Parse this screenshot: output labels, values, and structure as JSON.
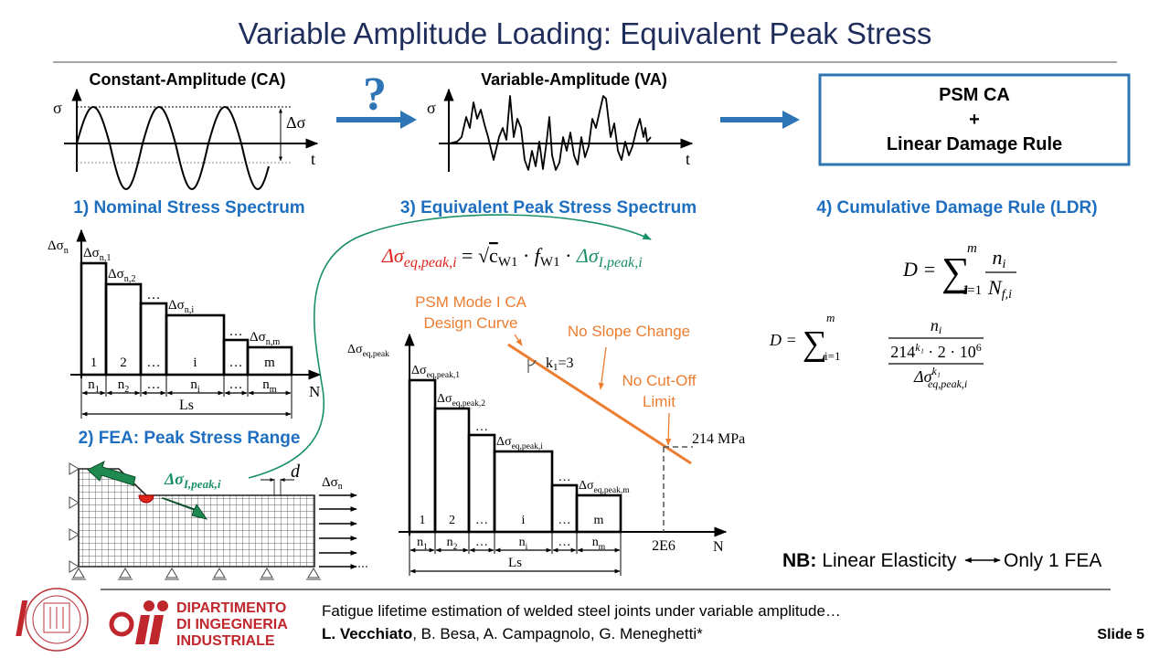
{
  "title": "Variable Amplitude Loading: Equivalent Peak Stress",
  "colors": {
    "title": "#1f2d5c",
    "accent": "#1f6fc0",
    "arrow": "#2e75b6",
    "orange": "#ed7d31",
    "red": "#e0231b",
    "green": "#1a9068",
    "logo_red": "#c0272d"
  },
  "top": {
    "ca_title": "Constant-Amplitude (CA)",
    "va_title": "Variable-Amplitude (VA)",
    "sigma": "σ",
    "time": "t",
    "delta_sigma": "Δσ",
    "question": "?",
    "result_box": {
      "line1": "PSM CA",
      "line2": "+",
      "line3": "Linear Damage Rule"
    }
  },
  "sections": {
    "s1": "1) Nominal Stress Spectrum",
    "s2": "2) FEA: Peak Stress Range",
    "s3": "3) Equivalent Peak Stress Spectrum",
    "s4": "4) Cumulative Damage Rule (LDR)"
  },
  "nominal_spectrum": {
    "axis_y": {
      "main": "Δσ",
      "sub": "n"
    },
    "axis_x": "N",
    "total": "Ls",
    "blocks": [
      {
        "level": {
          "main": "Δσ",
          "sub": "n,1"
        },
        "index": "1",
        "count": {
          "main": "n",
          "sub": "1"
        }
      },
      {
        "level": {
          "main": "Δσ",
          "sub": "n,2"
        },
        "index": "2",
        "count": {
          "main": "n",
          "sub": "2"
        }
      },
      {
        "level": {
          "main": "…",
          "sub": ""
        },
        "index": "…",
        "count": {
          "main": "…",
          "sub": ""
        }
      },
      {
        "level": {
          "main": "Δσ",
          "sub": "n,i"
        },
        "index": "i",
        "count": {
          "main": "n",
          "sub": "i"
        }
      },
      {
        "level": {
          "main": "…",
          "sub": ""
        },
        "index": "…",
        "count": {
          "main": "…",
          "sub": ""
        }
      },
      {
        "level": {
          "main": "Δσ",
          "sub": "n,m"
        },
        "index": "m",
        "count": {
          "main": "n",
          "sub": "m"
        }
      }
    ]
  },
  "fea": {
    "peak_label": {
      "main": "Δσ",
      "sub": "I,peak,i"
    },
    "d_label": "d",
    "load_label": {
      "main": "Δσ",
      "sub": "n"
    }
  },
  "equation_peak": {
    "lhs": {
      "main": "Δσ",
      "sub": "eq,peak,i"
    },
    "eq": " = ",
    "sqrt": "√",
    "cw": {
      "main": "c",
      "sub": "W1"
    },
    "dot": " · ",
    "fw": {
      "main": "f",
      "sub": "W1"
    },
    "rhs": {
      "main": "Δσ",
      "sub": "I,peak,i"
    }
  },
  "peak_spectrum": {
    "axis_y": {
      "main": "Δσ",
      "sub": "eq,peak"
    },
    "axis_x": "N",
    "total": "Ls",
    "n_ref": "2E6",
    "stress_ref": "214 MPa",
    "slope": {
      "main": "k",
      "sub": "1",
      "tail": "=3"
    },
    "annotations": {
      "curve": [
        "PSM Mode I CA",
        "Design Curve"
      ],
      "slope": "No Slope Change",
      "cutoff": [
        "No Cut-Off",
        "Limit"
      ]
    },
    "blocks": [
      {
        "level": {
          "main": "Δσ",
          "sub": "eq,peak,1"
        },
        "index": "1",
        "count": {
          "main": "n",
          "sub": "1"
        }
      },
      {
        "level": {
          "main": "Δσ",
          "sub": "eq,peak,2"
        },
        "index": "2",
        "count": {
          "main": "n",
          "sub": "2"
        }
      },
      {
        "level": {
          "main": "…",
          "sub": ""
        },
        "index": "…",
        "count": {
          "main": "…",
          "sub": ""
        }
      },
      {
        "level": {
          "main": "Δσ",
          "sub": "eq,peak,i"
        },
        "index": "i",
        "count": {
          "main": "n",
          "sub": "i"
        }
      },
      {
        "level": {
          "main": "…",
          "sub": ""
        },
        "index": "…",
        "count": {
          "main": "…",
          "sub": ""
        }
      },
      {
        "level": {
          "main": "Δσ",
          "sub": "eq,peak,m"
        },
        "index": "m",
        "count": {
          "main": "n",
          "sub": "m"
        }
      }
    ]
  },
  "damage": {
    "f1": {
      "lhs": "D = ",
      "sigma": "∑",
      "upper": "m",
      "lower": "i=1",
      "num": {
        "main": "n",
        "sub": "i"
      },
      "den": {
        "main": "N",
        "sub": "f,i"
      }
    },
    "f2": {
      "lhs": "D = ",
      "sigma": "∑",
      "upper": "m",
      "lower": "i=1",
      "num": {
        "main": "n",
        "sub": "i"
      },
      "den_num": {
        "base": "214",
        "exp": "k₁",
        "rest": " · 2 · 10",
        "exp2": "6"
      },
      "den_den": {
        "main": "Δσ",
        "sup": "k₁",
        "sub": "eq,peak,i"
      }
    }
  },
  "nb": {
    "label": "NB:",
    "left": "Linear Elasticity",
    "right": "Only 1 FEA"
  },
  "footer": {
    "dept": [
      "DIPARTIMENTO",
      "DI INGEGNERIA",
      "INDUSTRIALE"
    ],
    "paper_title": "Fatigue lifetime estimation of welded steel joints under variable amplitude…",
    "first_author": "L. Vecchiato",
    "other_authors": ", B. Besa, A. Campagnolo, G. Meneghetti*",
    "slide": "Slide 5"
  }
}
